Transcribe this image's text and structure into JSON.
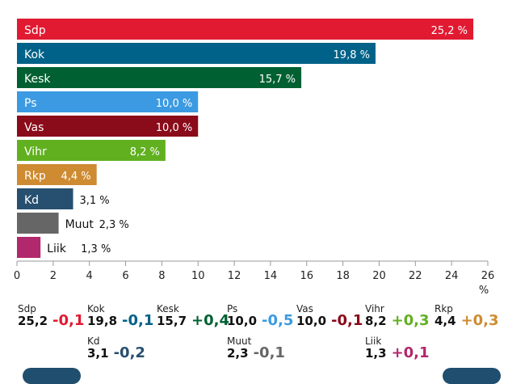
{
  "chart_data": {
    "type": "bar",
    "orientation": "horizontal",
    "categories": [
      "Sdp",
      "Kok",
      "Kesk",
      "Ps",
      "Vas",
      "Vihr",
      "Rkp",
      "Kd",
      "Muut",
      "Liik"
    ],
    "values": [
      25.2,
      19.8,
      15.7,
      10.0,
      10.0,
      8.2,
      4.4,
      3.1,
      2.3,
      1.3
    ],
    "value_labels": [
      "25,2 %",
      "19,8 %",
      "15,7 %",
      "10,0 %",
      "10,0 %",
      "8,2 %",
      "4,4 %",
      "3,1 %",
      "2,3 %",
      "1,3 %"
    ],
    "colors": [
      "#e11a32",
      "#006288",
      "#006031",
      "#3b9ae1",
      "#8a0b19",
      "#61b020",
      "#ce8b32",
      "#264f70",
      "#666666",
      "#b2286c"
    ],
    "xlim": [
      0,
      26
    ],
    "x_ticks": [
      "0",
      "2",
      "4",
      "6",
      "8",
      "10",
      "12",
      "14",
      "16",
      "18",
      "20",
      "22",
      "24",
      "26"
    ],
    "x_unit": "%",
    "grid": false,
    "legend": "none"
  },
  "stats": [
    {
      "name": "Sdp",
      "value": "25,2",
      "change": "-0,1",
      "color": "#e11a32"
    },
    {
      "name": "Kok",
      "value": "19,8",
      "change": "-0,1",
      "color": "#006288"
    },
    {
      "name": "Kesk",
      "value": "15,7",
      "change": "+0,4",
      "color": "#006031"
    },
    {
      "name": "Ps",
      "value": "10,0",
      "change": "-0,5",
      "color": "#3b9ae1"
    },
    {
      "name": "Vas",
      "value": "10,0",
      "change": "-0,1",
      "color": "#8a0b19"
    },
    {
      "name": "Vihr",
      "value": "8,2",
      "change": "+0,3",
      "color": "#61b020"
    },
    {
      "name": "Rkp",
      "value": "4,4",
      "change": "+0,3",
      "color": "#ce8b32"
    },
    {
      "name": "Kd",
      "value": "3,1",
      "change": "-0,2",
      "color": "#264f70"
    },
    {
      "name": "Muut",
      "value": "2,3",
      "change": "-0,1",
      "color": "#666666"
    },
    {
      "name": "Liik",
      "value": "1,3",
      "change": "+0,1",
      "color": "#b2286c"
    }
  ]
}
